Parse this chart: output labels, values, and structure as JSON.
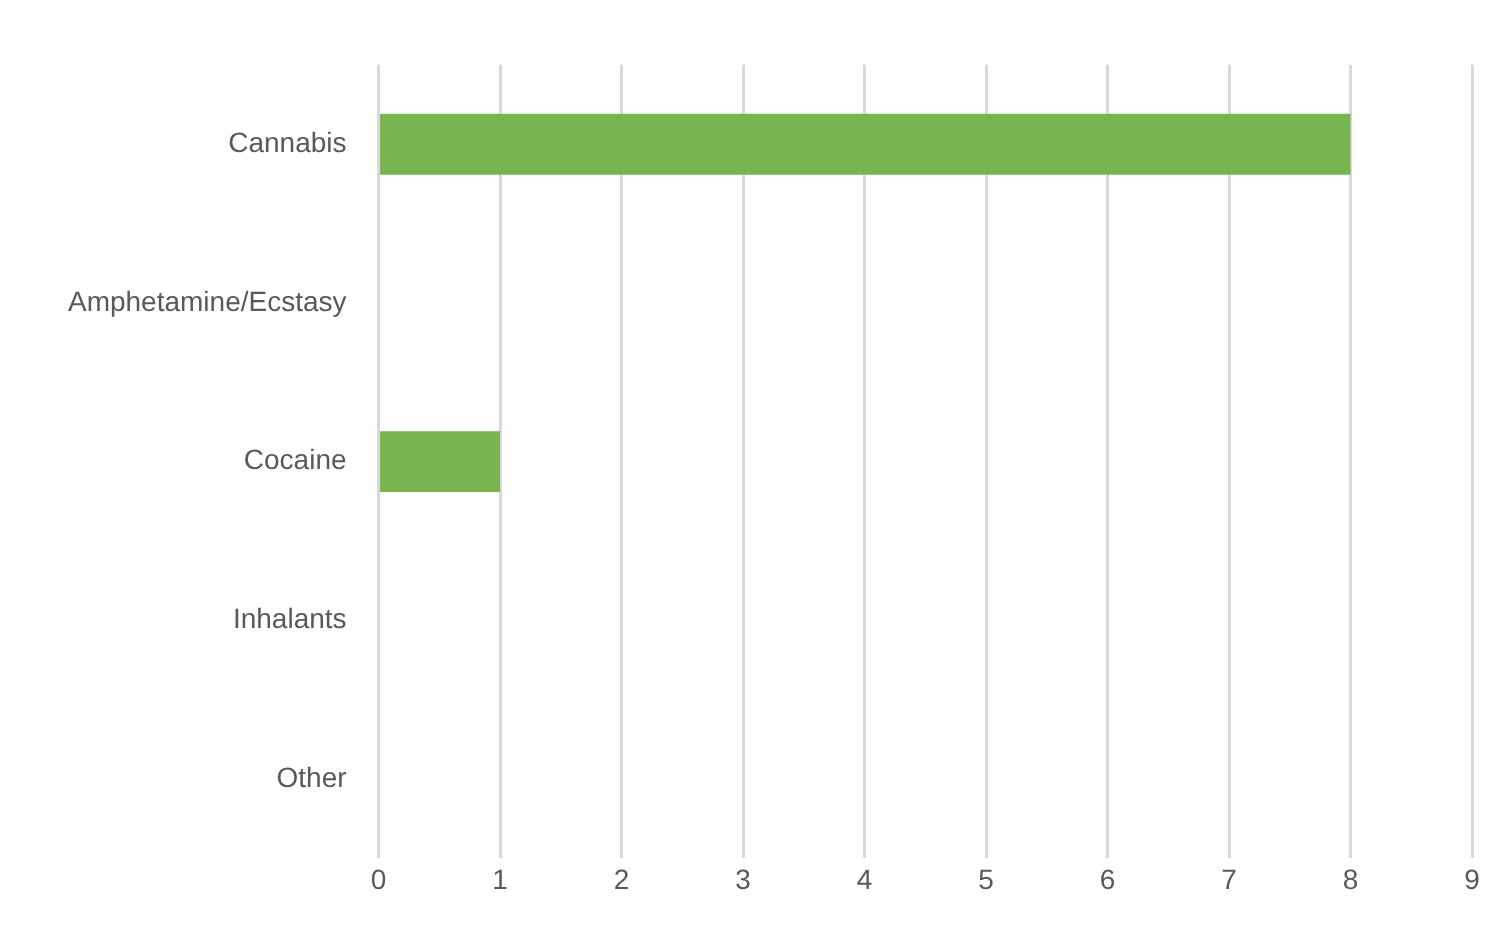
{
  "chart_data": {
    "type": "bar",
    "orientation": "horizontal",
    "categories": [
      "Cannabis",
      "Amphetamine/Ecstasy",
      "Cocaine",
      "Inhalants",
      "Other"
    ],
    "values": [
      8,
      0,
      1,
      0,
      0
    ],
    "color": "#77b550",
    "xlim": [
      0,
      9
    ],
    "xticks": [
      0,
      1,
      2,
      3,
      4,
      5,
      6,
      7,
      8,
      9
    ],
    "grid": "x",
    "legend": false
  }
}
